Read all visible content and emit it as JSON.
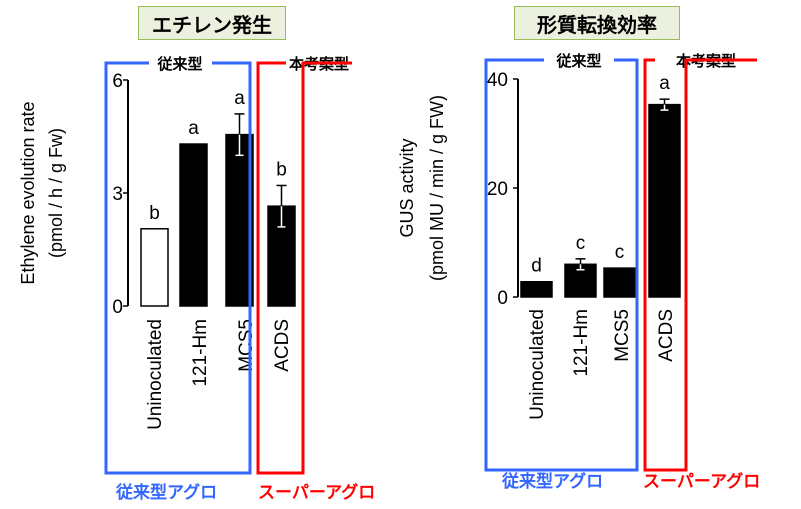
{
  "chart_data": [
    {
      "type": "bar",
      "title": "エチレン発生",
      "ylabel": "Ethylene evolution rate",
      "ylabel_unit": "(pmol / h / g Fw)",
      "yticks": [
        "0",
        "3",
        "6"
      ],
      "ylim": [
        0,
        6
      ],
      "categories": [
        "Uninoculated",
        "121-Hm",
        "MCS5",
        "ACDS"
      ],
      "values": [
        2.05,
        4.3,
        4.55,
        2.65
      ],
      "errors": [
        0,
        0,
        0.55,
        0.55
      ],
      "sig_letters": [
        "b",
        "a",
        "a",
        "b"
      ],
      "bar_fills": [
        "#ffffff",
        "#000000",
        "#000000",
        "#000000"
      ],
      "group_labels": {
        "conventional": "従来型",
        "proposed": "本考案型"
      },
      "bottom_labels": {
        "conventional": "従来型アグロ",
        "proposed": "スーパーアグロ"
      },
      "grid": false
    },
    {
      "type": "bar",
      "title": "形質転換効率",
      "ylabel": "GUS activity",
      "ylabel_unit": "(pmol MU / min / g FW)",
      "yticks": [
        "0",
        "20",
        "40"
      ],
      "ylim": [
        0,
        40
      ],
      "categories": [
        "Uninoculated",
        "121-Hm",
        "MCS5",
        "ACDS"
      ],
      "values": [
        2.8,
        6.0,
        5.3,
        35.3
      ],
      "errors": [
        0,
        1.0,
        0,
        1.0
      ],
      "sig_letters": [
        "d",
        "c",
        "c",
        "a"
      ],
      "bar_fills": [
        "#000000",
        "#000000",
        "#000000",
        "#000000"
      ],
      "group_labels": {
        "conventional": "従来型",
        "proposed": "本考案型"
      },
      "bottom_labels": {
        "conventional": "従来型アグロ",
        "proposed": "スーパーアグロ"
      },
      "grid": false
    }
  ],
  "colors": {
    "conventional": "#3366ff",
    "proposed": "#ff0000",
    "title_bg": "#ebf1de",
    "title_border": "#9bbb59"
  }
}
